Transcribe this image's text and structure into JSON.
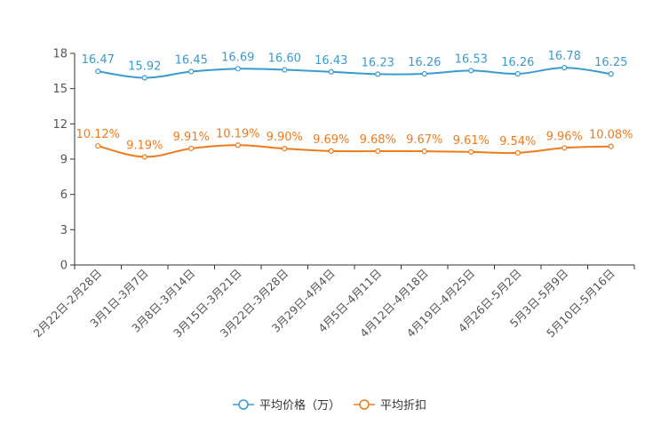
{
  "chart_data": {
    "type": "line",
    "categories": [
      "2月22日-2月28日",
      "3月1日-3月7日",
      "3月8日-3月14日",
      "3月15日-3月21日",
      "3月22日-3月28日",
      "3月29日-4月4日",
      "4月5日-4月11日",
      "4月12日-4月18日",
      "4月19日-4月25日",
      "4月26日-5月2日",
      "5月3日-5月9日",
      "5月10日-5月16日"
    ],
    "series": [
      {
        "name": "平均价格（万）",
        "color": "#3a9bd1",
        "values": [
          16.47,
          15.92,
          16.45,
          16.69,
          16.6,
          16.43,
          16.23,
          16.26,
          16.53,
          16.26,
          16.78,
          16.25
        ],
        "labels": [
          "16.47",
          "15.92",
          "16.45",
          "16.69",
          "16.60",
          "16.43",
          "16.23",
          "16.26",
          "16.53",
          "16.26",
          "16.78",
          "16.25"
        ]
      },
      {
        "name": "平均折扣",
        "color": "#f07b1c",
        "values": [
          10.12,
          9.19,
          9.91,
          10.19,
          9.9,
          9.69,
          9.68,
          9.67,
          9.61,
          9.54,
          9.96,
          10.08
        ],
        "labels": [
          "10.12%",
          "9.19%",
          "9.91%",
          "10.19%",
          "9.90%",
          "9.69%",
          "9.68%",
          "9.67%",
          "9.61%",
          "9.54%",
          "9.96%",
          "10.08%"
        ]
      }
    ],
    "ylim": [
      0,
      18
    ],
    "yticks": [
      "0",
      "3",
      "6",
      "9",
      "12",
      "15",
      "18"
    ],
    "title": "",
    "xlabel": "",
    "ylabel": "",
    "legend_position": "bottom-center",
    "grid": false
  }
}
